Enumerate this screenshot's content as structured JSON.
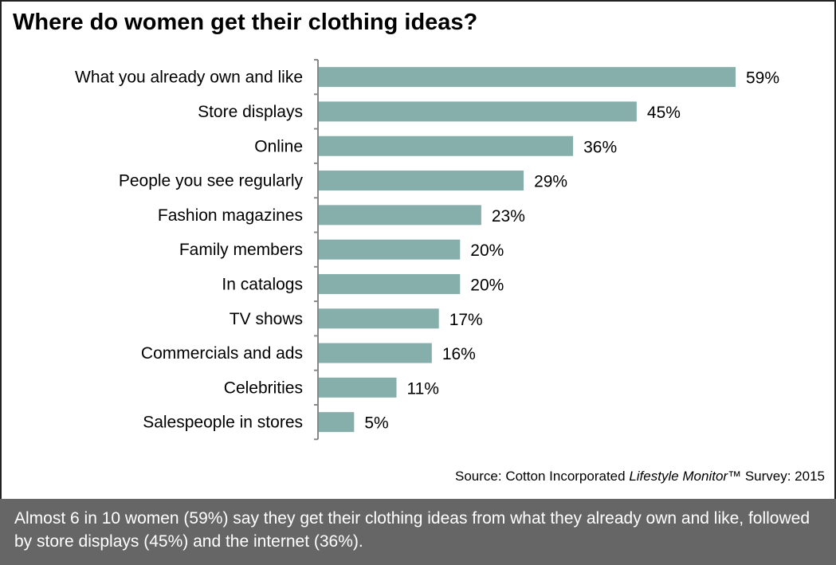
{
  "title": "Where do women get their clothing ideas?",
  "source": {
    "prefix": "Source: Cotton Incorporated ",
    "italic": "Lifestyle Monitor",
    "suffix": "™ Survey: 2015"
  },
  "footer": "Almost 6 in 10 women (59%) say they get their clothing ideas from what they already own and like, followed by store displays (45%) and the internet (36%).",
  "colors": {
    "bar": "#86afac",
    "axis": "#888888",
    "footer_bg": "#666666"
  },
  "chart_data": {
    "type": "bar",
    "orientation": "horizontal",
    "title": "Where do women get their clothing ideas?",
    "categories": [
      "What you already own and like",
      "Store displays",
      "Online",
      "People you see regularly",
      "Fashion magazines",
      "Family members",
      "In catalogs",
      "TV shows",
      "Commercials and ads",
      "Celebrities",
      "Salespeople in stores"
    ],
    "values": [
      59,
      45,
      36,
      29,
      23,
      20,
      20,
      17,
      16,
      11,
      5
    ],
    "labels": [
      "59%",
      "45%",
      "36%",
      "29%",
      "23%",
      "20%",
      "20%",
      "17%",
      "16%",
      "11%",
      "5%"
    ],
    "unit": "%",
    "xlim": [
      0,
      60
    ],
    "grid": false
  }
}
